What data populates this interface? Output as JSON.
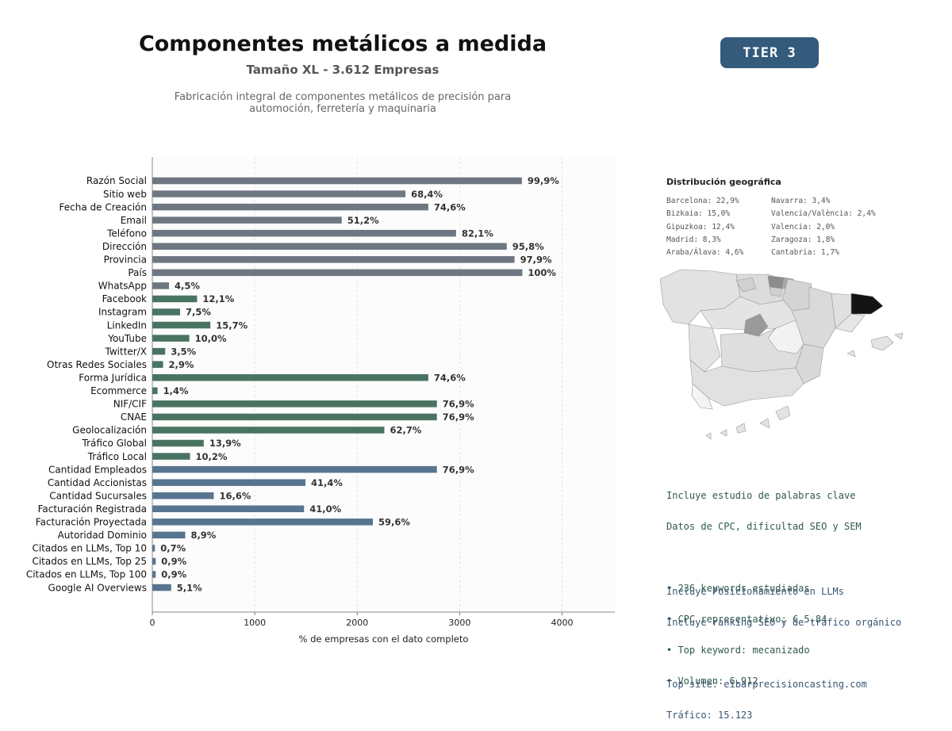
{
  "header": {
    "title": "Componentes metálicos a medida",
    "subtitle": "Tamaño XL - 3.612 Empresas",
    "description_line1": "Fabricación integral de componentes metálicos de precisión para",
    "description_line2": "automoción, ferretería y maquinaria",
    "tier": "TIER 3"
  },
  "colors": {
    "gray_bar": "#6e7781",
    "green_bar": "#4a7462",
    "blue_bar": "#587590",
    "badge": "#345a7c"
  },
  "chart_data": {
    "type": "bar",
    "orientation": "horizontal",
    "xlabel": "% de empresas con el dato completo",
    "xlim": [
      0,
      4515
    ],
    "xticks": [
      0,
      1000,
      2000,
      3000,
      4000
    ],
    "grid": "vertical dashed",
    "categories": [
      "Razón Social",
      "Sitio web",
      "Fecha de Creación",
      "Email",
      "Teléfono",
      "Dirección",
      "Provincia",
      "País",
      "WhatsApp",
      "Facebook",
      "Instagram",
      "LinkedIn",
      "YouTube",
      "Twitter/X",
      "Otras Redes Sociales",
      "Forma Jurídica",
      "Ecommerce",
      "NIF/CIF",
      "CNAE",
      "Geolocalización",
      "Tráfico Global",
      "Tráfico Local",
      "Cantidad Empleados",
      "Cantidad Accionistas",
      "Cantidad Sucursales",
      "Facturación Registrada",
      "Facturación Proyectada",
      "Autoridad Dominio",
      "Citados en LLMs, Top 10",
      "Citados en LLMs, Top 25",
      "Citados en LLMs, Top 100",
      "Google AI Overviews"
    ],
    "values": [
      3608,
      2471,
      2694,
      1849,
      2965,
      3460,
      3536,
      3612,
      163,
      437,
      271,
      567,
      361,
      126,
      105,
      2694,
      51,
      2778,
      2778,
      2265,
      502,
      368,
      2778,
      1495,
      600,
      1481,
      2153,
      321,
      25,
      33,
      33,
      184
    ],
    "labels": [
      "99,9%",
      "68,4%",
      "74,6%",
      "51,2%",
      "82,1%",
      "95,8%",
      "97,9%",
      "100%",
      "4,5%",
      "12,1%",
      "7,5%",
      "15,7%",
      "10,0%",
      "3,5%",
      "2,9%",
      "74,6%",
      "1,4%",
      "76,9%",
      "76,9%",
      "62,7%",
      "13,9%",
      "10,2%",
      "76,9%",
      "41,4%",
      "16,6%",
      "41,0%",
      "59,6%",
      "8,9%",
      "0,7%",
      "0,9%",
      "0,9%",
      "5,1%"
    ],
    "groups": [
      "gray",
      "gray",
      "gray",
      "gray",
      "gray",
      "gray",
      "gray",
      "gray",
      "gray",
      "green",
      "green",
      "green",
      "green",
      "green",
      "green",
      "green",
      "green",
      "green",
      "green",
      "green",
      "green",
      "green",
      "blue",
      "blue",
      "blue",
      "blue",
      "blue",
      "blue",
      "blue",
      "blue",
      "blue",
      "blue"
    ]
  },
  "geo": {
    "title": "Distribución geográfica",
    "col1": [
      "Barcelona: 22,9%",
      "Bizkaia: 15,0%",
      "Gipuzkoa: 12,4%",
      "Madrid: 8,3%",
      "Araba/Álava: 4,6%"
    ],
    "col2": [
      "Navarra: 3,4%",
      "Valencia/València: 2,4%",
      "Valencia: 2,0%",
      "Zaragoza: 1,8%",
      "Cantabria: 1,7%"
    ]
  },
  "seo": {
    "line1": "Incluye estudio de palabras clave",
    "line2": "Datos de CPC, dificultad SEO y SEM",
    "bullet1": "• 236 keywords estudiadas",
    "bullet2": "• CPC representativo: € 5.84",
    "bullet3": "• Top keyword: mecanizado",
    "bullet4": "• Volumen: 6.912"
  },
  "llm": {
    "line1": "Incluye Posicionamiento en LLMs",
    "line2": "Incluye ranking SEO y de tráfico orgánico",
    "top_site": "Top site: eibarprecisioncasting.com",
    "traffic": "Tráfico: 15.123"
  }
}
